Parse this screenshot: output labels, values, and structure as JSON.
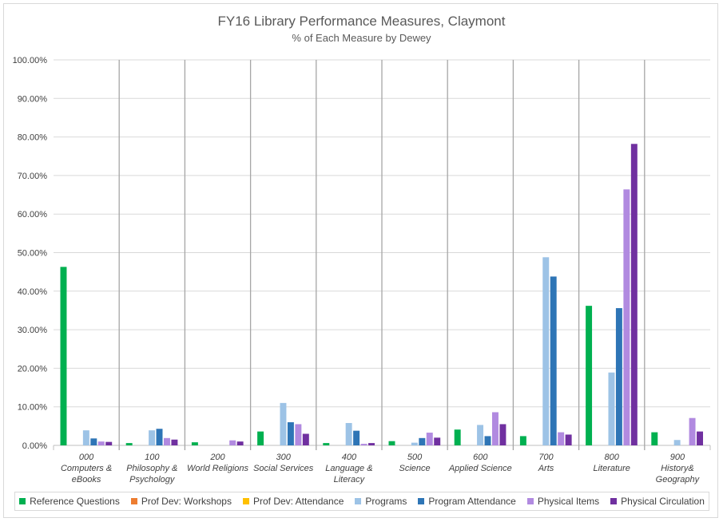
{
  "chart_data": {
    "type": "bar",
    "title": "FY16 Library Performance Measures, Claymont",
    "subtitle": "% of Each Measure by Dewey",
    "ylim": [
      0,
      100
    ],
    "yticks": [
      "0.00%",
      "10.00%",
      "20.00%",
      "30.00%",
      "40.00%",
      "50.00%",
      "60.00%",
      "70.00%",
      "80.00%",
      "90.00%",
      "100.00%"
    ],
    "categories": [
      [
        "000",
        "Computers &",
        "eBooks"
      ],
      [
        "100",
        "Philosophy &",
        "Psychology"
      ],
      [
        "200",
        "World Religions"
      ],
      [
        "300",
        "Social Services"
      ],
      [
        "400",
        "Language &",
        "Literacy"
      ],
      [
        "500",
        "Science"
      ],
      [
        "600",
        "Applied Science"
      ],
      [
        "700",
        "Arts"
      ],
      [
        "800",
        "Literature"
      ],
      [
        "900",
        "History&",
        "Geography"
      ]
    ],
    "legend_position": "bottom",
    "series": [
      {
        "name": "Reference Questions",
        "color": "#00b050",
        "values": [
          46.3,
          0.6,
          0.8,
          3.6,
          0.6,
          1.1,
          4.1,
          2.4,
          36.2,
          3.4
        ]
      },
      {
        "name": "Prof Dev: Workshops",
        "color": "#ed7d31",
        "values": [
          0,
          0,
          0,
          0,
          0,
          0,
          0,
          0,
          0,
          0
        ]
      },
      {
        "name": "Prof Dev: Attendance",
        "color": "#ffc000",
        "values": [
          0,
          0,
          0,
          0,
          0,
          0,
          0,
          0,
          0,
          0
        ]
      },
      {
        "name": "Programs",
        "color": "#9dc3e6",
        "values": [
          3.9,
          3.9,
          0,
          11.0,
          5.8,
          0.7,
          5.3,
          48.8,
          18.9,
          1.4
        ]
      },
      {
        "name": "Program Attendance",
        "color": "#2e75b6",
        "values": [
          1.8,
          4.3,
          0,
          6.0,
          3.8,
          1.9,
          2.4,
          43.8,
          35.6,
          0
        ]
      },
      {
        "name": "Physical Items",
        "color": "#b18ae0",
        "values": [
          1.0,
          1.9,
          1.3,
          5.5,
          0.4,
          3.3,
          8.6,
          3.4,
          66.4,
          7.1
        ]
      },
      {
        "name": "Physical Circulation",
        "color": "#7030a0",
        "values": [
          0.9,
          1.5,
          1.0,
          3.0,
          0.6,
          2.0,
          5.5,
          2.8,
          78.2,
          3.6
        ]
      }
    ]
  }
}
